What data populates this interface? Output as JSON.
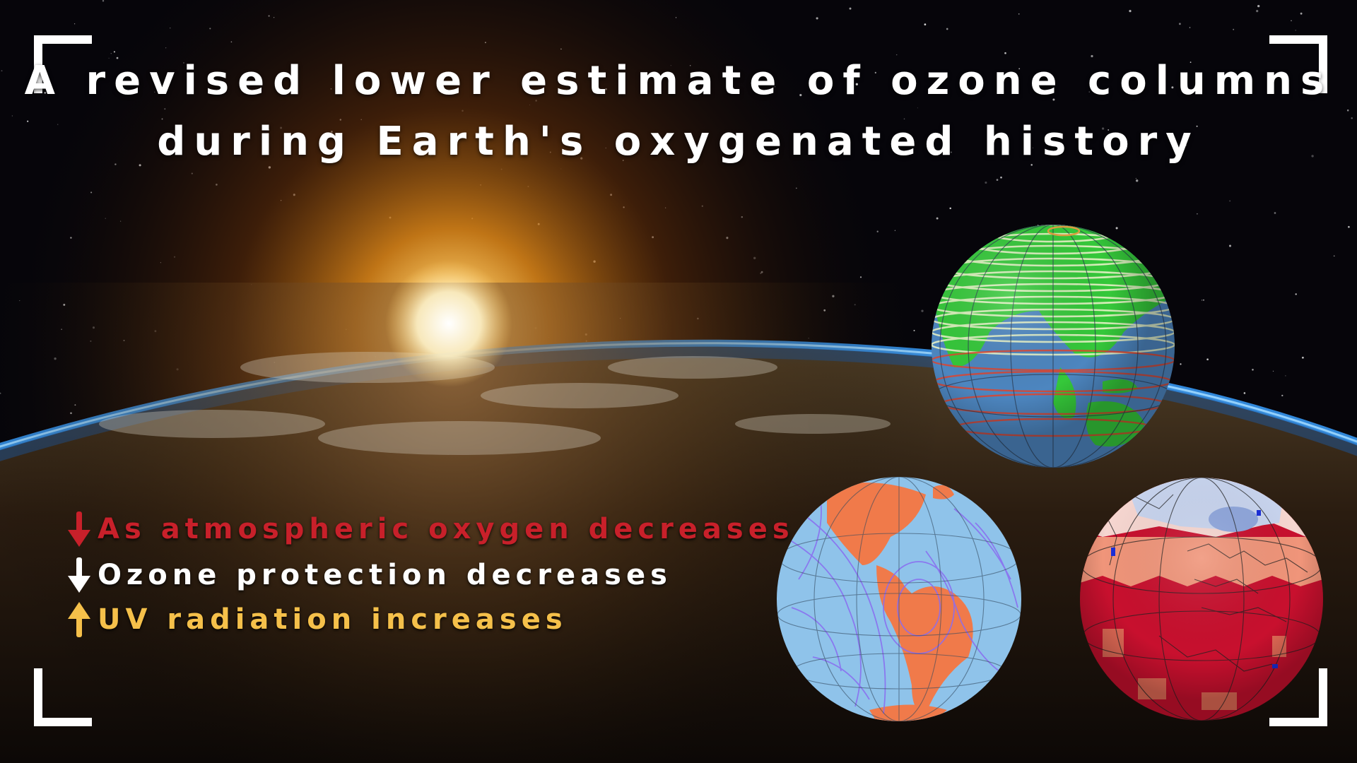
{
  "title": {
    "line1": "A revised lower estimate of ozone columns",
    "line2": "during Earth's oxygenated history"
  },
  "facts": [
    {
      "icon": "arrow-down-icon",
      "color": "#c8202a",
      "text": "As atmospheric oxygen decreases"
    },
    {
      "icon": "arrow-down-icon",
      "color": "#ffffff",
      "text": "Ozone protection decreases"
    },
    {
      "icon": "arrow-up-icon",
      "color": "#f5c04a",
      "text": "UV radiation increases"
    }
  ],
  "colors": {
    "frame": "#ffffff",
    "globe_ocean": "#4d86c0",
    "globe_land_green": "#35c83a",
    "globe_land_orange": "#f07a4a",
    "globe_light_blue": "#8fc3ea",
    "heatmap_red": "#c8102e"
  }
}
